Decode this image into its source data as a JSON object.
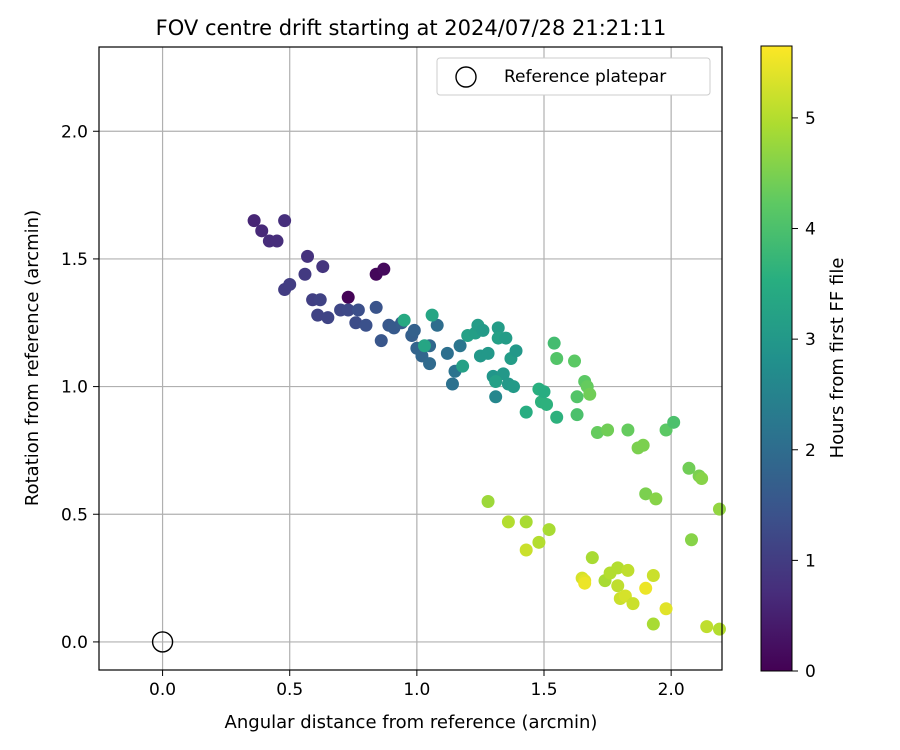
{
  "chart_data": {
    "type": "scatter",
    "title": "FOV centre drift starting at 2024/07/28 21:21:11",
    "xlabel": "Angular distance from reference (arcmin)",
    "ylabel": "Rotation from reference (arcmin)",
    "xlim": [
      -0.25,
      2.2
    ],
    "ylim": [
      -0.11,
      2.33
    ],
    "xticks": [
      0.0,
      0.5,
      1.0,
      1.5,
      2.0
    ],
    "xtick_labels": [
      "0.0",
      "0.5",
      "1.0",
      "1.5",
      "2.0"
    ],
    "yticks": [
      0.0,
      0.5,
      1.0,
      1.5,
      2.0
    ],
    "ytick_labels": [
      "0.0",
      "0.5",
      "1.0",
      "1.5",
      "2.0"
    ],
    "grid": true,
    "legend": {
      "placement": "top-right",
      "entries": [
        {
          "label": "Reference platepar",
          "marker": "open-circle"
        }
      ]
    },
    "reference_point": {
      "x": 0.0,
      "y": 0.0
    },
    "colorbar": {
      "label": "Hours from first FF file",
      "range": [
        0,
        5.65
      ],
      "ticks": [
        0,
        1,
        2,
        3,
        4,
        5
      ],
      "tick_labels": [
        "0",
        "1",
        "2",
        "3",
        "4",
        "5"
      ],
      "colormap": "viridis"
    },
    "points": [
      [
        0.73,
        1.35,
        0.05
      ],
      [
        0.84,
        1.44,
        0.1
      ],
      [
        0.87,
        1.46,
        0.15
      ],
      [
        0.36,
        1.65,
        0.6
      ],
      [
        0.39,
        1.61,
        0.65
      ],
      [
        0.42,
        1.57,
        0.7
      ],
      [
        0.45,
        1.57,
        0.72
      ],
      [
        0.48,
        1.65,
        0.75
      ],
      [
        0.57,
        1.51,
        0.8
      ],
      [
        0.63,
        1.47,
        0.85
      ],
      [
        0.56,
        1.44,
        0.95
      ],
      [
        0.48,
        1.38,
        1.0
      ],
      [
        0.5,
        1.4,
        1.02
      ],
      [
        0.59,
        1.34,
        1.05
      ],
      [
        0.62,
        1.34,
        1.1
      ],
      [
        0.61,
        1.28,
        1.12
      ],
      [
        0.65,
        1.27,
        1.15
      ],
      [
        0.7,
        1.3,
        1.2
      ],
      [
        0.73,
        1.3,
        1.25
      ],
      [
        0.76,
        1.25,
        1.3
      ],
      [
        0.77,
        1.3,
        1.35
      ],
      [
        0.8,
        1.24,
        1.4
      ],
      [
        0.84,
        1.31,
        1.45
      ],
      [
        0.86,
        1.18,
        1.5
      ],
      [
        0.89,
        1.24,
        1.55
      ],
      [
        0.91,
        1.23,
        1.6
      ],
      [
        0.94,
        1.25,
        1.65
      ],
      [
        0.98,
        1.2,
        1.7
      ],
      [
        0.99,
        1.22,
        1.75
      ],
      [
        1.0,
        1.15,
        1.8
      ],
      [
        1.02,
        1.12,
        1.85
      ],
      [
        1.05,
        1.16,
        1.9
      ],
      [
        1.05,
        1.09,
        1.95
      ],
      [
        1.08,
        1.24,
        2.0
      ],
      [
        1.12,
        1.13,
        2.05
      ],
      [
        1.14,
        1.01,
        2.1
      ],
      [
        1.15,
        1.06,
        2.15
      ],
      [
        1.17,
        1.16,
        2.2
      ],
      [
        0.95,
        1.26,
        3.4
      ],
      [
        1.03,
        1.16,
        3.3
      ],
      [
        1.06,
        1.28,
        3.3
      ],
      [
        1.18,
        1.08,
        3.2
      ],
      [
        1.2,
        1.2,
        3.2
      ],
      [
        1.23,
        1.21,
        3.15
      ],
      [
        1.24,
        1.24,
        3.1
      ],
      [
        1.25,
        1.12,
        3.0
      ],
      [
        1.26,
        1.22,
        3.05
      ],
      [
        1.28,
        1.13,
        3.0
      ],
      [
        1.3,
        1.04,
        2.95
      ],
      [
        1.31,
        0.96,
        2.6
      ],
      [
        1.32,
        1.23,
        3.1
      ],
      [
        1.32,
        1.19,
        3.2
      ],
      [
        1.34,
        1.05,
        3.0
      ],
      [
        1.35,
        1.19,
        3.1
      ],
      [
        1.36,
        1.01,
        3.0
      ],
      [
        1.37,
        1.11,
        3.1
      ],
      [
        1.38,
        1.0,
        3.05
      ],
      [
        1.39,
        1.14,
        3.0
      ],
      [
        1.31,
        1.02,
        3.2
      ],
      [
        1.43,
        0.9,
        3.5
      ],
      [
        1.48,
        0.99,
        3.55
      ],
      [
        1.49,
        0.94,
        3.6
      ],
      [
        1.5,
        0.98,
        3.5
      ],
      [
        1.51,
        0.93,
        3.6
      ],
      [
        1.54,
        1.17,
        3.9
      ],
      [
        1.55,
        1.11,
        4.1
      ],
      [
        1.55,
        0.88,
        3.6
      ],
      [
        1.62,
        1.1,
        4.2
      ],
      [
        1.63,
        0.89,
        4.0
      ],
      [
        1.63,
        0.96,
        4.1
      ],
      [
        1.66,
        1.02,
        4.2
      ],
      [
        1.67,
        1.0,
        4.3
      ],
      [
        1.68,
        0.97,
        4.4
      ],
      [
        1.71,
        0.82,
        4.3
      ],
      [
        1.75,
        0.83,
        4.4
      ],
      [
        1.83,
        0.83,
        4.3
      ],
      [
        1.87,
        0.76,
        4.5
      ],
      [
        1.89,
        0.77,
        4.5
      ],
      [
        1.98,
        0.83,
        4.2
      ],
      [
        2.01,
        0.86,
        4.0
      ],
      [
        2.07,
        0.68,
        4.4
      ],
      [
        2.11,
        0.65,
        4.5
      ],
      [
        2.12,
        0.64,
        4.6
      ],
      [
        1.9,
        0.58,
        4.5
      ],
      [
        1.94,
        0.56,
        4.6
      ],
      [
        2.08,
        0.4,
        4.6
      ],
      [
        2.19,
        0.52,
        4.7
      ],
      [
        1.28,
        0.55,
        4.8
      ],
      [
        1.36,
        0.47,
        5.0
      ],
      [
        1.43,
        0.47,
        4.9
      ],
      [
        1.43,
        0.36,
        5.2
      ],
      [
        1.48,
        0.39,
        5.0
      ],
      [
        1.52,
        0.44,
        4.9
      ],
      [
        1.65,
        0.25,
        5.3
      ],
      [
        1.66,
        0.24,
        5.4
      ],
      [
        1.66,
        0.23,
        5.5
      ],
      [
        1.69,
        0.33,
        4.9
      ],
      [
        1.74,
        0.24,
        4.9
      ],
      [
        1.76,
        0.27,
        5.0
      ],
      [
        1.79,
        0.29,
        5.0
      ],
      [
        1.79,
        0.22,
        5.1
      ],
      [
        1.8,
        0.17,
        5.2
      ],
      [
        1.82,
        0.18,
        5.3
      ],
      [
        1.83,
        0.28,
        5.1
      ],
      [
        1.85,
        0.15,
        5.2
      ],
      [
        1.9,
        0.21,
        5.5
      ],
      [
        1.93,
        0.26,
        5.2
      ],
      [
        1.93,
        0.07,
        4.9
      ],
      [
        1.98,
        0.13,
        5.4
      ],
      [
        2.14,
        0.06,
        5.1
      ],
      [
        2.19,
        0.05,
        5.0
      ]
    ]
  }
}
